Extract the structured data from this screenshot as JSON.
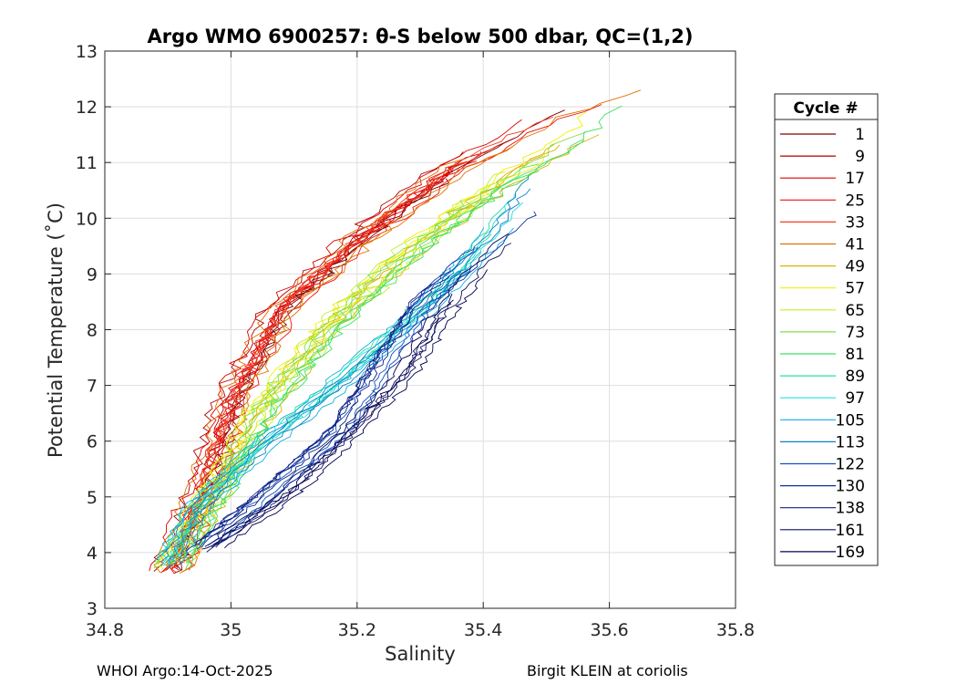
{
  "chart_data": {
    "type": "line",
    "title": "Argo WMO 6900257: θ-S below 500 dbar,  QC=(1,2)",
    "xlabel": "Salinity",
    "ylabel": "Potential Temperature (˚C)",
    "xlim": [
      34.8,
      35.8
    ],
    "ylim": [
      3,
      13
    ],
    "xticks": [
      34.8,
      35,
      35.2,
      35.4,
      35.6,
      35.8
    ],
    "xtick_labels": [
      "34.8",
      "35",
      "35.2",
      "35.4",
      "35.6",
      "35.8"
    ],
    "yticks": [
      3,
      4,
      5,
      6,
      7,
      8,
      9,
      10,
      11,
      12,
      13
    ],
    "ytick_labels": [
      "3",
      "4",
      "5",
      "6",
      "7",
      "8",
      "9",
      "10",
      "11",
      "12",
      "13"
    ],
    "grid": true,
    "legend": {
      "title": "Cycle #",
      "placement": "right-outside",
      "entries": [
        {
          "label": "1",
          "color": "#800000"
        },
        {
          "label": "9",
          "color": "#b00000"
        },
        {
          "label": "17",
          "color": "#e00000"
        },
        {
          "label": "25",
          "color": "#f01010"
        },
        {
          "label": "33",
          "color": "#f04020"
        },
        {
          "label": "41",
          "color": "#e07000"
        },
        {
          "label": "49",
          "color": "#e0b000"
        },
        {
          "label": "57",
          "color": "#f0f000"
        },
        {
          "label": "65",
          "color": "#c0f030"
        },
        {
          "label": "73",
          "color": "#80e040"
        },
        {
          "label": "81",
          "color": "#40e060"
        },
        {
          "label": "89",
          "color": "#20e0a0"
        },
        {
          "label": "97",
          "color": "#20e0e0"
        },
        {
          "label": "105",
          "color": "#10b0e0"
        },
        {
          "label": "113",
          "color": "#1080c0"
        },
        {
          "label": "122",
          "color": "#1050c0"
        },
        {
          "label": "130",
          "color": "#1030a0"
        },
        {
          "label": "138",
          "color": "#102080"
        },
        {
          "label": "161",
          "color": "#101060"
        },
        {
          "label": "169",
          "color": "#000050"
        }
      ]
    },
    "series_envelopes": [
      {
        "group": "early cycles (red/orange, 1-41)",
        "pts": [
          [
            34.9,
            3.6
          ],
          [
            34.95,
            5.0
          ],
          [
            35.0,
            6.7
          ],
          [
            35.08,
            8.4
          ],
          [
            35.2,
            9.6
          ],
          [
            35.35,
            10.9
          ],
          [
            35.5,
            11.8
          ],
          [
            35.66,
            12.5
          ]
        ]
      },
      {
        "group": "middle cycles (yellow/green, 49-89)",
        "pts": [
          [
            34.9,
            3.7
          ],
          [
            34.98,
            5.2
          ],
          [
            35.05,
            6.6
          ],
          [
            35.15,
            8.0
          ],
          [
            35.28,
            9.4
          ],
          [
            35.42,
            10.6
          ],
          [
            35.55,
            11.5
          ],
          [
            35.6,
            12.0
          ]
        ]
      },
      {
        "group": "cyan cycles (97-113)",
        "pts": [
          [
            34.9,
            3.7
          ],
          [
            34.95,
            4.8
          ],
          [
            35.05,
            5.9
          ],
          [
            35.15,
            6.8
          ],
          [
            35.25,
            7.8
          ],
          [
            35.33,
            8.6
          ],
          [
            35.42,
            9.7
          ],
          [
            35.49,
            10.8
          ]
        ]
      },
      {
        "group": "blue cycles (122-138)",
        "pts": [
          [
            34.94,
            4.0
          ],
          [
            35.05,
            5.0
          ],
          [
            35.17,
            6.2
          ],
          [
            35.25,
            7.6
          ],
          [
            35.3,
            8.5
          ],
          [
            35.38,
            9.3
          ],
          [
            35.47,
            10.2
          ]
        ]
      },
      {
        "group": "dark navy cycles (161-169)",
        "pts": [
          [
            34.95,
            4.0
          ],
          [
            35.08,
            5.0
          ],
          [
            35.17,
            6.0
          ],
          [
            35.27,
            7.2
          ],
          [
            35.33,
            8.3
          ],
          [
            35.38,
            9.0
          ],
          [
            35.45,
            9.8
          ]
        ]
      }
    ]
  },
  "footer": {
    "left": "WHOI Argo:14-Oct-2025",
    "right": "Birgit KLEIN at coriolis"
  }
}
